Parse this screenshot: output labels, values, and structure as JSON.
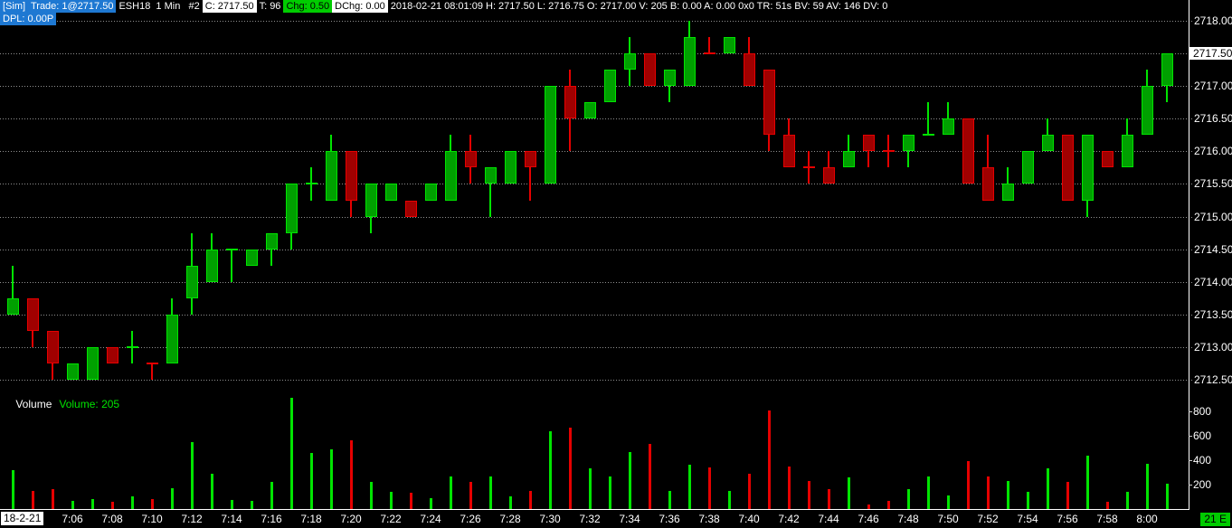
{
  "header": {
    "line1": [
      {
        "name": "sim-trade-chip",
        "style": "blue",
        "text": "[Sim]  Trade: 1@2717.50"
      },
      {
        "name": "symbol-period-label",
        "style": "plain",
        "text": "ESH18  1 Min   #2"
      },
      {
        "name": "close-chip",
        "style": "white",
        "text": "C: 2717.50"
      },
      {
        "name": "trades-chip",
        "style": "plain",
        "text": "T: 96"
      },
      {
        "name": "change-chip",
        "style": "green",
        "text": "Chg: 0.50"
      },
      {
        "name": "day-change-chip",
        "style": "white",
        "text": "DChg: 0.00"
      },
      {
        "name": "bar-stats-label",
        "style": "plain",
        "text": "2018-02-21 08:01:09 H: 2717.50 L: 2716.75 O: 2717.00 V: 205 B: 0.00 A: 0.00 0x0 TR: 51s BV: 59 AV: 146 DV: 0"
      }
    ],
    "line2": [
      {
        "name": "dpl-chip",
        "style": "blue",
        "text": "DPL: 0.00P"
      }
    ]
  },
  "volume_panel": {
    "title": "Volume",
    "value": "Volume: 205"
  },
  "axis": {
    "price_ticks": [
      "2718.00",
      "2717.50",
      "2717.00",
      "2716.50",
      "2716.00",
      "2715.50",
      "2715.00",
      "2714.50",
      "2714.00",
      "2713.50",
      "2713.00",
      "2712.50"
    ],
    "current_price": "2717.50",
    "volume_ticks": [
      "800",
      "600",
      "400",
      "200"
    ],
    "time_ticks": [
      "7:06",
      "7:08",
      "7:10",
      "7:12",
      "7:14",
      "7:16",
      "7:18",
      "7:20",
      "7:22",
      "7:24",
      "7:26",
      "7:28",
      "7:30",
      "7:32",
      "7:34",
      "7:36",
      "7:38",
      "7:40",
      "7:42",
      "7:44",
      "7:46",
      "7:48",
      "7:50",
      "7:52",
      "7:54",
      "7:56",
      "7:58",
      "8:00"
    ],
    "date_label": "18-2-21",
    "badge": "21 E"
  },
  "colors": {
    "up": "#00e400",
    "up_fill": "#00a000",
    "down": "#e60000",
    "down_fill": "#a00000",
    "grid": "#8f8f8f",
    "chip_blue": "#1e78d2",
    "chip_green": "#00cc00",
    "axis_text": "#ffffff"
  },
  "chart_data": {
    "type": "candlestick",
    "symbol": "ESH18",
    "interval": "1 Min",
    "price_axis": {
      "min": 2712.5,
      "max": 2718.0,
      "tick": 0.5
    },
    "volume_axis": {
      "max": 800,
      "tick": 200
    },
    "candles": [
      {
        "t": "7:03",
        "o": 2713.5,
        "h": 2714.25,
        "l": 2713.5,
        "c": 2713.75,
        "v": 320,
        "d": "u"
      },
      {
        "t": "7:04",
        "o": 2713.75,
        "h": 2713.75,
        "l": 2713.0,
        "c": 2713.25,
        "v": 150,
        "d": "d"
      },
      {
        "t": "7:05",
        "o": 2713.25,
        "h": 2713.25,
        "l": 2712.5,
        "c": 2712.75,
        "v": 160,
        "d": "d"
      },
      {
        "t": "7:06",
        "o": 2712.5,
        "h": 2712.75,
        "l": 2712.5,
        "c": 2712.75,
        "v": 70,
        "d": "u"
      },
      {
        "t": "7:07",
        "o": 2712.5,
        "h": 2713.0,
        "l": 2712.5,
        "c": 2713.0,
        "v": 80,
        "d": "u"
      },
      {
        "t": "7:08",
        "o": 2713.0,
        "h": 2713.0,
        "l": 2712.75,
        "c": 2712.75,
        "v": 60,
        "d": "d"
      },
      {
        "t": "7:09",
        "o": 2713.0,
        "h": 2713.25,
        "l": 2712.75,
        "c": 2713.0,
        "v": 100,
        "d": "u"
      },
      {
        "t": "7:10",
        "o": 2712.75,
        "h": 2712.75,
        "l": 2712.5,
        "c": 2712.75,
        "v": 80,
        "d": "d"
      },
      {
        "t": "7:11",
        "o": 2712.75,
        "h": 2713.75,
        "l": 2712.75,
        "c": 2713.5,
        "v": 170,
        "d": "u"
      },
      {
        "t": "7:12",
        "o": 2713.75,
        "h": 2714.75,
        "l": 2713.5,
        "c": 2714.25,
        "v": 550,
        "d": "u"
      },
      {
        "t": "7:13",
        "o": 2714.0,
        "h": 2714.75,
        "l": 2714.0,
        "c": 2714.5,
        "v": 290,
        "d": "u"
      },
      {
        "t": "7:14",
        "o": 2714.5,
        "h": 2714.5,
        "l": 2714.0,
        "c": 2714.5,
        "v": 75,
        "d": "u"
      },
      {
        "t": "7:15",
        "o": 2714.25,
        "h": 2714.5,
        "l": 2714.25,
        "c": 2714.5,
        "v": 70,
        "d": "u"
      },
      {
        "t": "7:16",
        "o": 2714.5,
        "h": 2714.75,
        "l": 2714.25,
        "c": 2714.75,
        "v": 220,
        "d": "u"
      },
      {
        "t": "7:17",
        "o": 2714.75,
        "h": 2715.5,
        "l": 2714.5,
        "c": 2715.5,
        "v": 910,
        "d": "u"
      },
      {
        "t": "7:18",
        "o": 2715.5,
        "h": 2715.75,
        "l": 2715.25,
        "c": 2715.5,
        "v": 460,
        "d": "u"
      },
      {
        "t": "7:19",
        "o": 2715.25,
        "h": 2716.25,
        "l": 2715.25,
        "c": 2716.0,
        "v": 490,
        "d": "u"
      },
      {
        "t": "7:20",
        "o": 2716.0,
        "h": 2716.0,
        "l": 2715.0,
        "c": 2715.25,
        "v": 560,
        "d": "d"
      },
      {
        "t": "7:21",
        "o": 2715.0,
        "h": 2715.5,
        "l": 2714.75,
        "c": 2715.5,
        "v": 220,
        "d": "u"
      },
      {
        "t": "7:22",
        "o": 2715.25,
        "h": 2715.5,
        "l": 2715.25,
        "c": 2715.5,
        "v": 140,
        "d": "u"
      },
      {
        "t": "7:23",
        "o": 2715.25,
        "h": 2715.25,
        "l": 2715.0,
        "c": 2715.0,
        "v": 130,
        "d": "d"
      },
      {
        "t": "7:24",
        "o": 2715.25,
        "h": 2715.5,
        "l": 2715.25,
        "c": 2715.5,
        "v": 90,
        "d": "u"
      },
      {
        "t": "7:25",
        "o": 2715.25,
        "h": 2716.25,
        "l": 2715.25,
        "c": 2716.0,
        "v": 270,
        "d": "u"
      },
      {
        "t": "7:26",
        "o": 2716.0,
        "h": 2716.25,
        "l": 2715.5,
        "c": 2715.75,
        "v": 220,
        "d": "d"
      },
      {
        "t": "7:27",
        "o": 2715.5,
        "h": 2715.75,
        "l": 2715.0,
        "c": 2715.75,
        "v": 270,
        "d": "u"
      },
      {
        "t": "7:28",
        "o": 2715.5,
        "h": 2716.0,
        "l": 2715.5,
        "c": 2716.0,
        "v": 100,
        "d": "u"
      },
      {
        "t": "7:29",
        "o": 2716.0,
        "h": 2716.0,
        "l": 2715.25,
        "c": 2715.75,
        "v": 150,
        "d": "d"
      },
      {
        "t": "7:30",
        "o": 2715.5,
        "h": 2717.0,
        "l": 2715.5,
        "c": 2717.0,
        "v": 640,
        "d": "u"
      },
      {
        "t": "7:31",
        "o": 2717.0,
        "h": 2717.25,
        "l": 2716.0,
        "c": 2716.5,
        "v": 670,
        "d": "d"
      },
      {
        "t": "7:32",
        "o": 2716.5,
        "h": 2716.75,
        "l": 2716.5,
        "c": 2716.75,
        "v": 330,
        "d": "u"
      },
      {
        "t": "7:33",
        "o": 2716.75,
        "h": 2717.25,
        "l": 2716.75,
        "c": 2717.25,
        "v": 270,
        "d": "u"
      },
      {
        "t": "7:34",
        "o": 2717.25,
        "h": 2717.75,
        "l": 2717.0,
        "c": 2717.5,
        "v": 470,
        "d": "u"
      },
      {
        "t": "7:35",
        "o": 2717.5,
        "h": 2717.5,
        "l": 2717.0,
        "c": 2717.0,
        "v": 530,
        "d": "d"
      },
      {
        "t": "7:36",
        "o": 2717.0,
        "h": 2717.25,
        "l": 2716.75,
        "c": 2717.25,
        "v": 150,
        "d": "u"
      },
      {
        "t": "7:37",
        "o": 2717.0,
        "h": 2718.0,
        "l": 2717.0,
        "c": 2717.75,
        "v": 360,
        "d": "u"
      },
      {
        "t": "7:38",
        "o": 2717.5,
        "h": 2717.75,
        "l": 2717.5,
        "c": 2717.5,
        "v": 340,
        "d": "d"
      },
      {
        "t": "7:39",
        "o": 2717.5,
        "h": 2717.75,
        "l": 2717.5,
        "c": 2717.75,
        "v": 150,
        "d": "u"
      },
      {
        "t": "7:40",
        "o": 2717.5,
        "h": 2717.75,
        "l": 2717.0,
        "c": 2717.0,
        "v": 290,
        "d": "d"
      },
      {
        "t": "7:41",
        "o": 2717.25,
        "h": 2717.25,
        "l": 2716.0,
        "c": 2716.25,
        "v": 810,
        "d": "d"
      },
      {
        "t": "7:42",
        "o": 2716.25,
        "h": 2716.5,
        "l": 2715.75,
        "c": 2715.75,
        "v": 350,
        "d": "d"
      },
      {
        "t": "7:43",
        "o": 2715.75,
        "h": 2716.0,
        "l": 2715.5,
        "c": 2715.75,
        "v": 230,
        "d": "d"
      },
      {
        "t": "7:44",
        "o": 2715.75,
        "h": 2716.0,
        "l": 2715.5,
        "c": 2715.5,
        "v": 160,
        "d": "d"
      },
      {
        "t": "7:45",
        "o": 2715.75,
        "h": 2716.25,
        "l": 2715.75,
        "c": 2716.0,
        "v": 260,
        "d": "u"
      },
      {
        "t": "7:46",
        "o": 2716.25,
        "h": 2716.25,
        "l": 2715.75,
        "c": 2716.0,
        "v": 40,
        "d": "d"
      },
      {
        "t": "7:47",
        "o": 2716.0,
        "h": 2716.25,
        "l": 2715.75,
        "c": 2716.0,
        "v": 70,
        "d": "d"
      },
      {
        "t": "7:48",
        "o": 2716.0,
        "h": 2716.25,
        "l": 2715.75,
        "c": 2716.25,
        "v": 160,
        "d": "u"
      },
      {
        "t": "7:49",
        "o": 2716.25,
        "h": 2716.75,
        "l": 2716.25,
        "c": 2716.25,
        "v": 270,
        "d": "u"
      },
      {
        "t": "7:50",
        "o": 2716.25,
        "h": 2716.75,
        "l": 2716.25,
        "c": 2716.5,
        "v": 110,
        "d": "u"
      },
      {
        "t": "7:51",
        "o": 2716.5,
        "h": 2716.5,
        "l": 2715.5,
        "c": 2715.5,
        "v": 390,
        "d": "d"
      },
      {
        "t": "7:52",
        "o": 2715.75,
        "h": 2716.25,
        "l": 2715.25,
        "c": 2715.25,
        "v": 270,
        "d": "d"
      },
      {
        "t": "7:53",
        "o": 2715.25,
        "h": 2715.75,
        "l": 2715.25,
        "c": 2715.5,
        "v": 230,
        "d": "u"
      },
      {
        "t": "7:54",
        "o": 2715.5,
        "h": 2716.0,
        "l": 2715.5,
        "c": 2716.0,
        "v": 140,
        "d": "u"
      },
      {
        "t": "7:55",
        "o": 2716.0,
        "h": 2716.5,
        "l": 2716.0,
        "c": 2716.25,
        "v": 330,
        "d": "u"
      },
      {
        "t": "7:56",
        "o": 2716.25,
        "h": 2716.25,
        "l": 2715.25,
        "c": 2715.25,
        "v": 220,
        "d": "d"
      },
      {
        "t": "7:57",
        "o": 2715.25,
        "h": 2716.25,
        "l": 2715.0,
        "c": 2716.25,
        "v": 440,
        "d": "u"
      },
      {
        "t": "7:58",
        "o": 2716.0,
        "h": 2716.0,
        "l": 2715.75,
        "c": 2715.75,
        "v": 60,
        "d": "d"
      },
      {
        "t": "7:59",
        "o": 2715.75,
        "h": 2716.5,
        "l": 2715.75,
        "c": 2716.25,
        "v": 140,
        "d": "u"
      },
      {
        "t": "8:00",
        "o": 2716.25,
        "h": 2717.25,
        "l": 2716.25,
        "c": 2717.0,
        "v": 370,
        "d": "u"
      },
      {
        "t": "8:01",
        "o": 2717.0,
        "h": 2717.5,
        "l": 2716.75,
        "c": 2717.5,
        "v": 205,
        "d": "u"
      }
    ]
  }
}
